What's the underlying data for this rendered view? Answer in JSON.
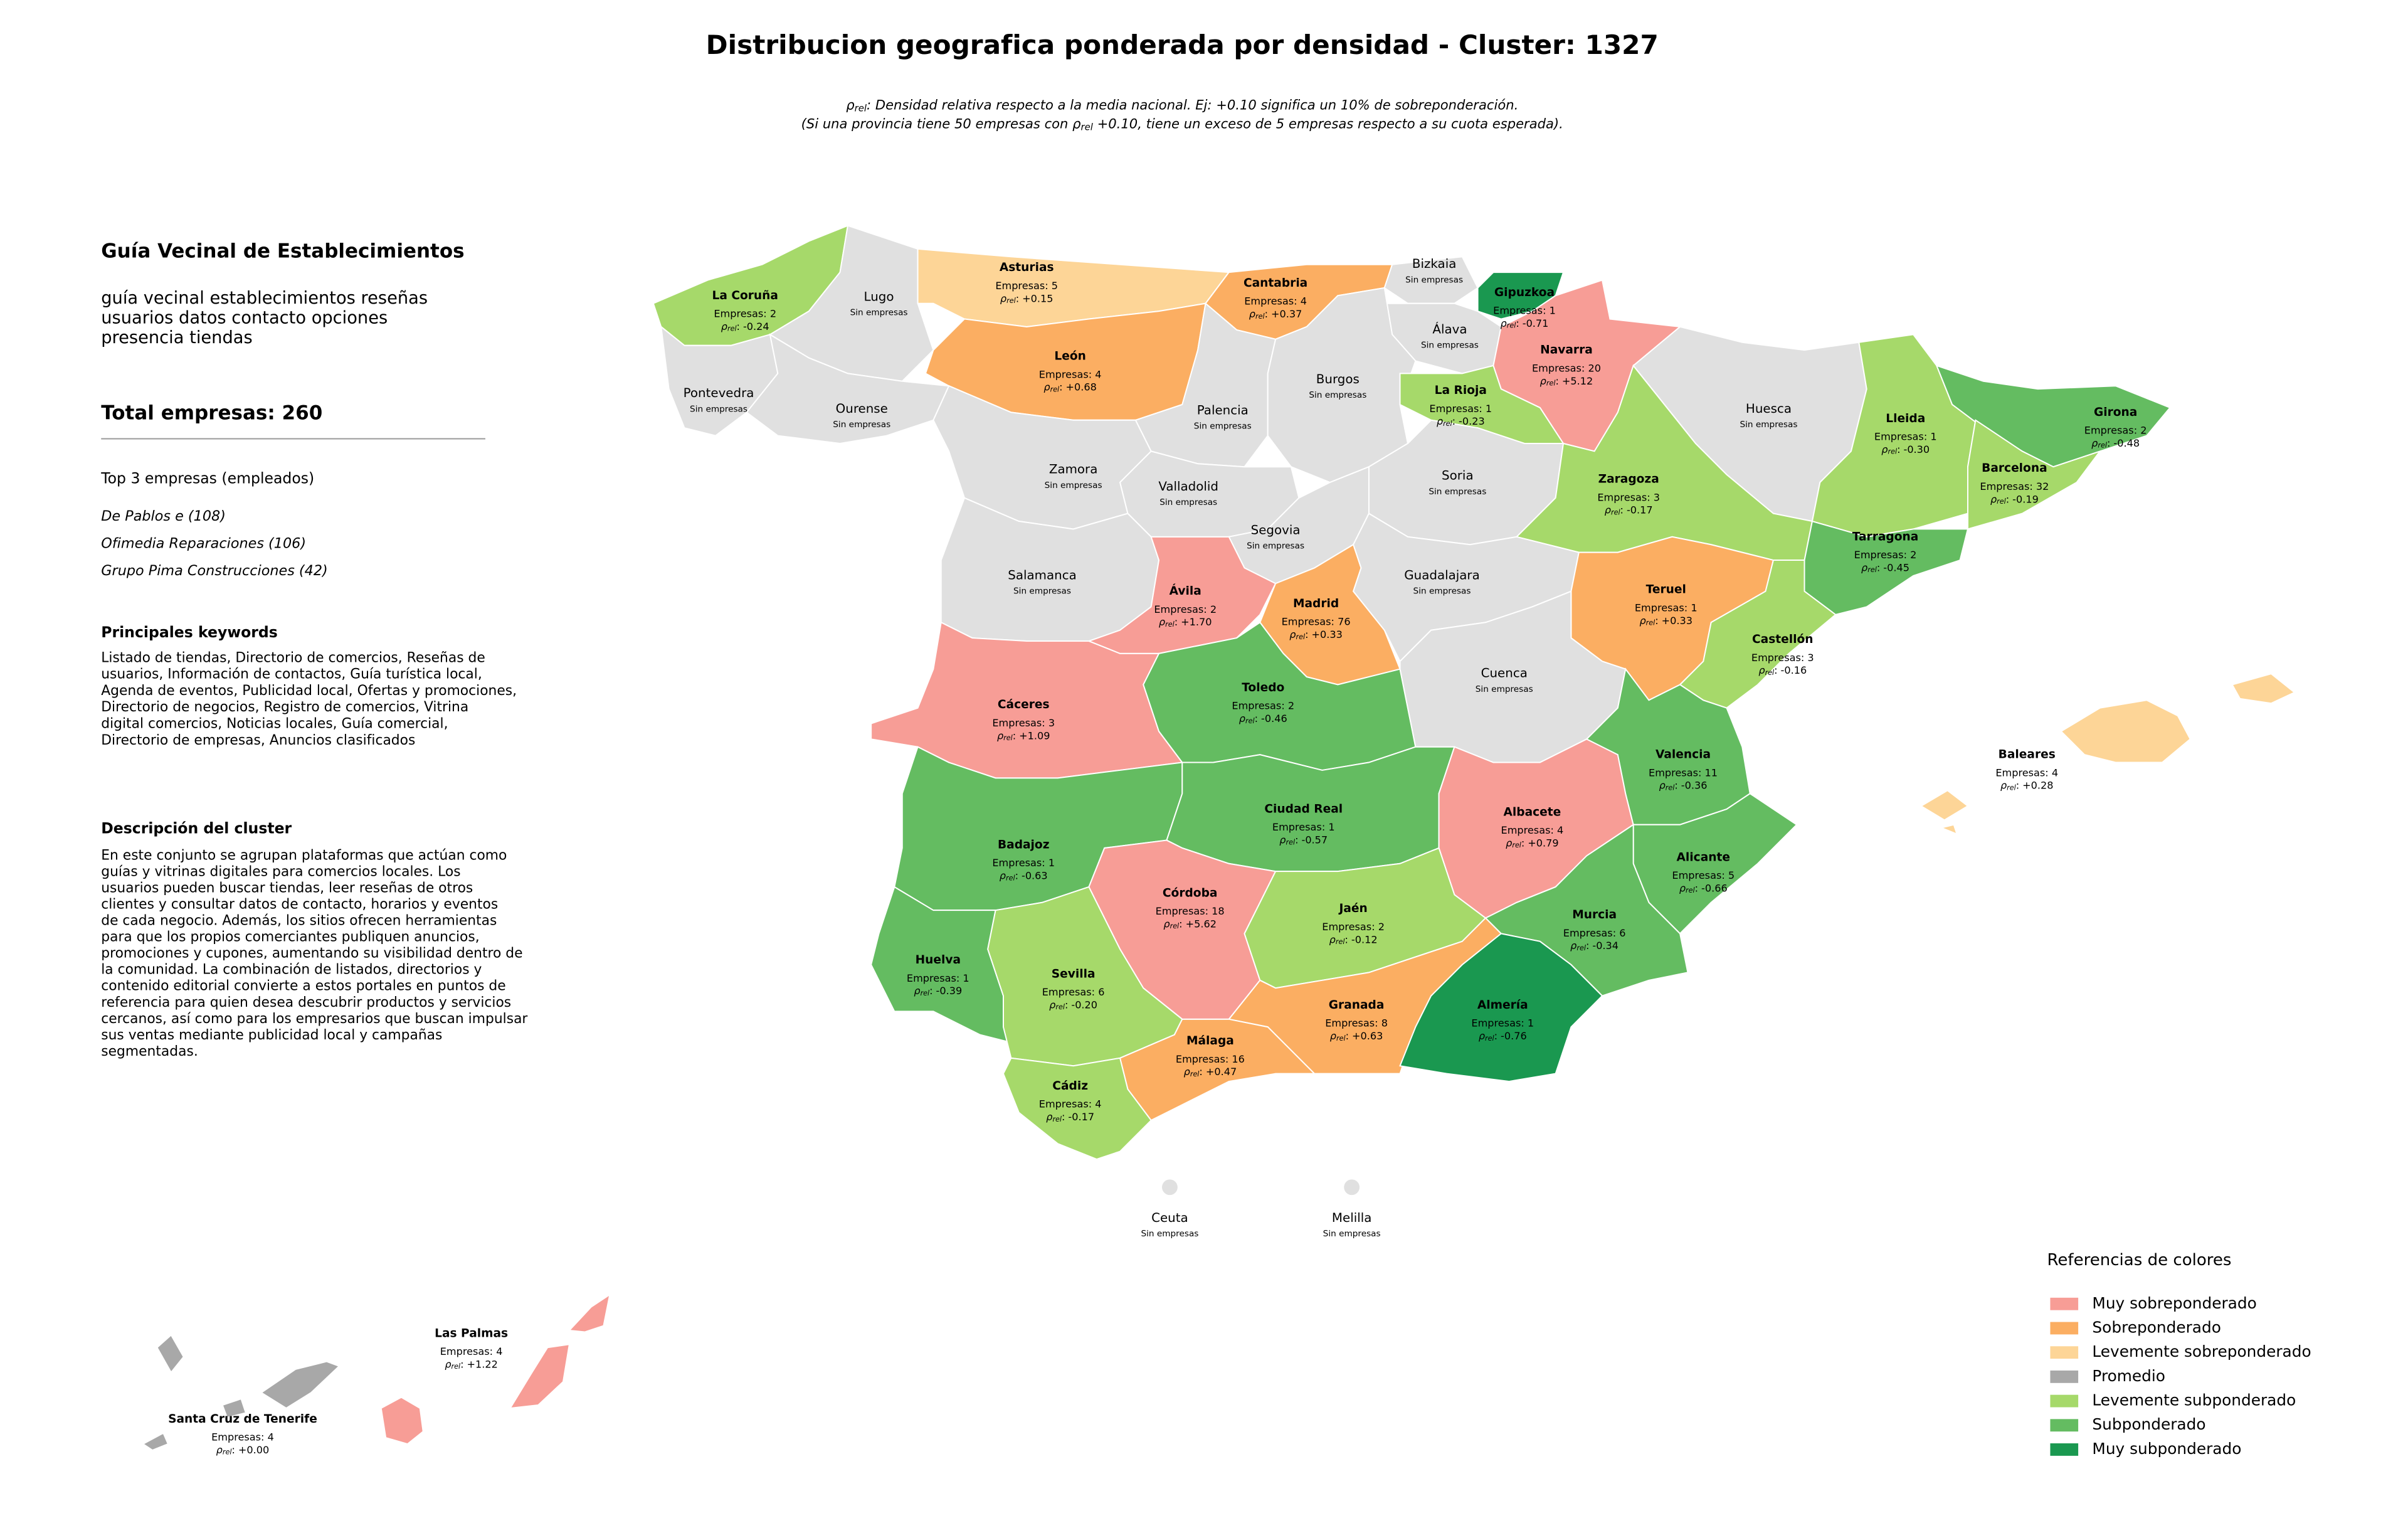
{
  "header": {
    "title": "Distribucion geografica ponderada por densidad - Cluster: 1327",
    "subtitle_lines": [
      [
        {
          "text": "ρ"
        },
        {
          "text": "rel",
          "subscript": true
        },
        {
          "text": ": Densidad relativa respecto a la media nacional. Ej: +0.10 significa un 10% de sobreponderación."
        }
      ],
      [
        {
          "text": "(Si una provincia tiene 50 empresas con ρ"
        },
        {
          "text": "rel",
          "subscript": true
        },
        {
          "text": " +0.10, tiene un exceso de 5 empresas respecto a su cuota esperada)."
        }
      ]
    ]
  },
  "panel": {
    "title": "Guía Vecinal de Establecimientos",
    "summary_lines": [
      "guía vecinal establecimientos reseñas",
      "usuarios datos contacto opciones",
      "presencia tiendas"
    ],
    "total": "Total empresas: 260",
    "top_title": "Top 3 empresas (empleados)",
    "top_companies": [
      "De Pablos e (108)",
      "Ofimedia Reparaciones (106)",
      "Grupo Pima Construcciones (42)"
    ],
    "keywords_title": "Principales keywords",
    "keywords_lines": [
      "Listado de tiendas, Directorio de comercios, Reseñas de",
      "usuarios, Información de contactos, Guía turística local,",
      "Agenda de eventos, Publicidad local, Ofertas y promociones,",
      "Directorio de negocios, Registro de comercios, Vitrina",
      "digital comercios, Noticias locales, Guía comercial,",
      "Directorio de empresas, Anuncios clasificados"
    ],
    "description_title": "Descripción del cluster",
    "description_lines": [
      "En este conjunto se agrupan plataformas que actúan como",
      "guías y vitrinas digitales para comercios locales. Los",
      "usuarios pueden buscar tiendas, leer reseñas de otros",
      "clientes y consultar datos de contacto, horarios y eventos",
      "de cada negocio. Además, los sitios ofrecen herramientas",
      "para que los propios comerciantes publiquen anuncios,",
      "promociones y cupones, aumentando su visibilidad dentro de",
      "la comunidad. La combinación de listados, directorios y",
      "contenido editorial convierte a estos portales en puntos de",
      "referencia para quien desea descubrir productos y servicios",
      "cercanos, así como para los empresarios que buscan impulsar",
      "sus ventas mediante publicidad local y campañas",
      "segmentadas."
    ]
  },
  "map": {
    "density_label": {
      "symbol": "ρ",
      "subscript": "rel",
      "separator": ":"
    },
    "no_companies_label": "Sin empresas",
    "no_data_color": "#e0e0e0",
    "legend": {
      "title": "Referencias de colores",
      "items": [
        {
          "label": "Muy sobreponderado",
          "color": "#f79d96"
        },
        {
          "label": "Sobreponderado",
          "color": "#fbae62"
        },
        {
          "label": "Levemente sobreponderado",
          "color": "#fdd597"
        },
        {
          "label": "Promedio",
          "color": "#a8a8a8"
        },
        {
          "label": "Levemente subponderado",
          "color": "#a6d96a"
        },
        {
          "label": "Subponderado",
          "color": "#64bc61"
        },
        {
          "label": "Muy subponderado",
          "color": "#1a9850"
        }
      ]
    },
    "provinces": [
      {
        "name": "La Coruña",
        "level": 4,
        "companies": "Empresas: 2",
        "density": "-0.24"
      },
      {
        "name": "Lugo"
      },
      {
        "name": "Asturias",
        "level": 2,
        "companies": "Empresas: 5",
        "density": "+0.15"
      },
      {
        "name": "Cantabria",
        "level": 1,
        "companies": "Empresas: 4",
        "density": "+0.37"
      },
      {
        "name": "Bizkaia"
      },
      {
        "name": "Gipuzkoa",
        "level": 6,
        "companies": "Empresas: 1",
        "density": "-0.71"
      },
      {
        "name": "Álava"
      },
      {
        "name": "Navarra",
        "level": 0,
        "companies": "Empresas: 20",
        "density": "+5.12"
      },
      {
        "name": "Pontevedra"
      },
      {
        "name": "Ourense"
      },
      {
        "name": "León",
        "level": 1,
        "companies": "Empresas: 4",
        "density": "+0.68"
      },
      {
        "name": "Palencia"
      },
      {
        "name": "Burgos"
      },
      {
        "name": "La Rioja",
        "level": 4,
        "companies": "Empresas: 1",
        "density": "-0.23"
      },
      {
        "name": "Huesca"
      },
      {
        "name": "Lleida",
        "level": 4,
        "companies": "Empresas: 1",
        "density": "-0.30"
      },
      {
        "name": "Girona",
        "level": 5,
        "companies": "Empresas: 2",
        "density": "-0.48"
      },
      {
        "name": "Barcelona",
        "level": 4,
        "companies": "Empresas: 32",
        "density": "-0.19"
      },
      {
        "name": "Zamora"
      },
      {
        "name": "Valladolid"
      },
      {
        "name": "Soria"
      },
      {
        "name": "Zaragoza",
        "level": 4,
        "companies": "Empresas: 3",
        "density": "-0.17"
      },
      {
        "name": "Segovia"
      },
      {
        "name": "Salamanca"
      },
      {
        "name": "Ávila",
        "level": 0,
        "companies": "Empresas: 2",
        "density": "+1.70"
      },
      {
        "name": "Madrid",
        "level": 1,
        "companies": "Empresas: 76",
        "density": "+0.33"
      },
      {
        "name": "Guadalajara"
      },
      {
        "name": "Teruel",
        "level": 1,
        "companies": "Empresas: 1",
        "density": "+0.33"
      },
      {
        "name": "Tarragona",
        "level": 5,
        "companies": "Empresas: 2",
        "density": "-0.45"
      },
      {
        "name": "Castellón",
        "level": 4,
        "companies": "Empresas: 3",
        "density": "-0.16"
      },
      {
        "name": "Cáceres",
        "level": 0,
        "companies": "Empresas: 3",
        "density": "+1.09"
      },
      {
        "name": "Toledo",
        "level": 5,
        "companies": "Empresas: 2",
        "density": "-0.46"
      },
      {
        "name": "Cuenca"
      },
      {
        "name": "Badajoz",
        "level": 5,
        "companies": "Empresas: 1",
        "density": "-0.63"
      },
      {
        "name": "Ciudad Real",
        "level": 5,
        "companies": "Empresas: 1",
        "density": "-0.57"
      },
      {
        "name": "Albacete",
        "level": 0,
        "companies": "Empresas: 4",
        "density": "+0.79"
      },
      {
        "name": "Valencia",
        "level": 5,
        "companies": "Empresas: 11",
        "density": "-0.36"
      },
      {
        "name": "Alicante",
        "level": 5,
        "companies": "Empresas: 5",
        "density": "-0.66"
      },
      {
        "name": "Córdoba",
        "level": 0,
        "companies": "Empresas: 18",
        "density": "+5.62"
      },
      {
        "name": "Jaén",
        "level": 4,
        "companies": "Empresas: 2",
        "density": "-0.12"
      },
      {
        "name": "Murcia",
        "level": 5,
        "companies": "Empresas: 6",
        "density": "-0.34"
      },
      {
        "name": "Huelva",
        "level": 5,
        "companies": "Empresas: 1",
        "density": "-0.39"
      },
      {
        "name": "Sevilla",
        "level": 4,
        "companies": "Empresas: 6",
        "density": "-0.20"
      },
      {
        "name": "Granada",
        "level": 1,
        "companies": "Empresas: 8",
        "density": "+0.63"
      },
      {
        "name": "Almería",
        "level": 6,
        "companies": "Empresas: 1",
        "density": "-0.76"
      },
      {
        "name": "Málaga",
        "level": 1,
        "companies": "Empresas: 16",
        "density": "+0.47"
      },
      {
        "name": "Cádiz",
        "level": 4,
        "companies": "Empresas: 4",
        "density": "-0.17"
      },
      {
        "name": "Baleares",
        "level": 2,
        "companies": "Empresas: 4",
        "density": "+0.28"
      },
      {
        "name": "Las Palmas",
        "level": 0,
        "companies": "Empresas: 4",
        "density": "+1.22"
      },
      {
        "name": "Santa Cruz de Tenerife",
        "level": 3,
        "companies": "Empresas: 4",
        "density": "+0.00"
      },
      {
        "name": "Ceuta"
      },
      {
        "name": "Melilla"
      }
    ]
  }
}
